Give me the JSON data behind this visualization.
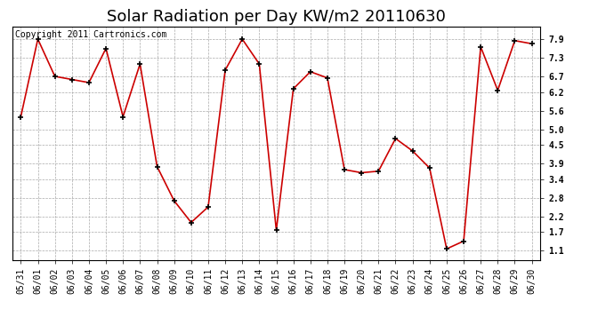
{
  "title": "Solar Radiation per Day KW/m2 20110630",
  "copyright_text": "Copyright 2011 Cartronics.com",
  "dates": [
    "05/31",
    "06/01",
    "06/02",
    "06/03",
    "06/04",
    "06/05",
    "06/06",
    "06/07",
    "06/08",
    "06/09",
    "06/10",
    "06/11",
    "06/12",
    "06/13",
    "06/14",
    "06/15",
    "06/16",
    "06/17",
    "06/18",
    "06/19",
    "06/20",
    "06/21",
    "06/22",
    "06/23",
    "06/24",
    "06/25",
    "06/26",
    "06/27",
    "06/28",
    "06/29",
    "06/30"
  ],
  "values": [
    5.4,
    7.9,
    6.7,
    6.6,
    6.5,
    7.6,
    5.4,
    7.1,
    3.8,
    2.7,
    2.0,
    2.5,
    6.9,
    7.9,
    7.1,
    1.75,
    6.3,
    6.85,
    6.65,
    3.7,
    3.6,
    3.65,
    4.7,
    4.3,
    3.75,
    1.15,
    1.4,
    7.65,
    6.25,
    7.85,
    7.75
  ],
  "line_color": "#cc0000",
  "marker_color": "#000000",
  "bg_color": "#ffffff",
  "plot_bg_color": "#ffffff",
  "grid_color": "#aaaaaa",
  "yticks": [
    1.1,
    1.7,
    2.2,
    2.8,
    3.4,
    3.9,
    4.5,
    5.0,
    5.6,
    6.2,
    6.7,
    7.3,
    7.9
  ],
  "ylim": [
    0.8,
    8.3
  ],
  "title_fontsize": 13,
  "copyright_fontsize": 7,
  "tick_fontsize": 7,
  "ylabel_fontsize": 7
}
